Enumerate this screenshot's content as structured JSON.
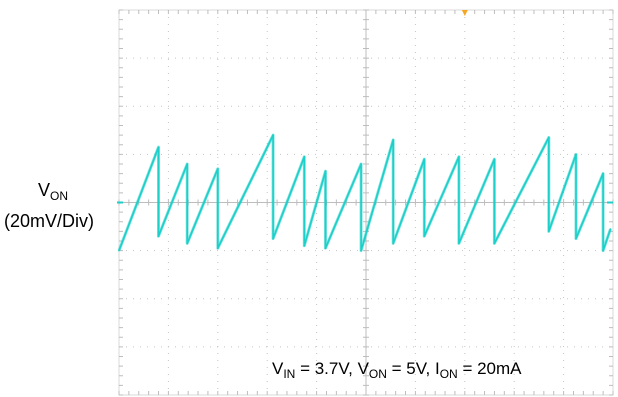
{
  "chart_data": {
    "type": "line",
    "title": "",
    "ylabel": {
      "symbol": "V",
      "symbol_sub": "ON",
      "scale": "(20mV/Div)"
    },
    "caption": {
      "vin_sym": "V",
      "vin_sub": "IN",
      "vin_val": " = 3.7V, ",
      "von_sym": "V",
      "von_sub": "ON",
      "von_val": " = 5V, ",
      "ion_sym": "I",
      "ion_sub": "ON",
      "ion_val": " = 20mA"
    },
    "grid": {
      "divisions_x": 10,
      "divisions_y": 8,
      "style": "dotted"
    },
    "ylim_div": [
      -4,
      4
    ],
    "xlim_div": [
      0,
      10
    ],
    "series": [
      {
        "color": "#1ccfc9",
        "points_div": [
          [
            0.0,
            -1.0
          ],
          [
            0.8,
            1.15
          ],
          [
            0.8,
            -0.7
          ],
          [
            1.38,
            0.8
          ],
          [
            1.38,
            -0.85
          ],
          [
            2.0,
            0.7
          ],
          [
            2.0,
            -0.95
          ],
          [
            3.12,
            1.4
          ],
          [
            3.12,
            -0.75
          ],
          [
            3.75,
            0.95
          ],
          [
            3.75,
            -0.9
          ],
          [
            4.18,
            0.65
          ],
          [
            4.18,
            -0.95
          ],
          [
            4.9,
            0.8
          ],
          [
            4.9,
            -1.0
          ],
          [
            5.55,
            1.3
          ],
          [
            5.55,
            -0.85
          ],
          [
            6.18,
            0.9
          ],
          [
            6.18,
            -0.7
          ],
          [
            6.88,
            0.95
          ],
          [
            6.88,
            -0.85
          ],
          [
            7.6,
            0.9
          ],
          [
            7.6,
            -0.85
          ],
          [
            8.7,
            1.35
          ],
          [
            8.7,
            -0.6
          ],
          [
            9.25,
            1.0
          ],
          [
            9.25,
            -0.75
          ],
          [
            9.8,
            0.6
          ],
          [
            9.8,
            -1.0
          ],
          [
            9.95,
            -0.55
          ]
        ]
      }
    ],
    "reference_level_div": 0
  }
}
